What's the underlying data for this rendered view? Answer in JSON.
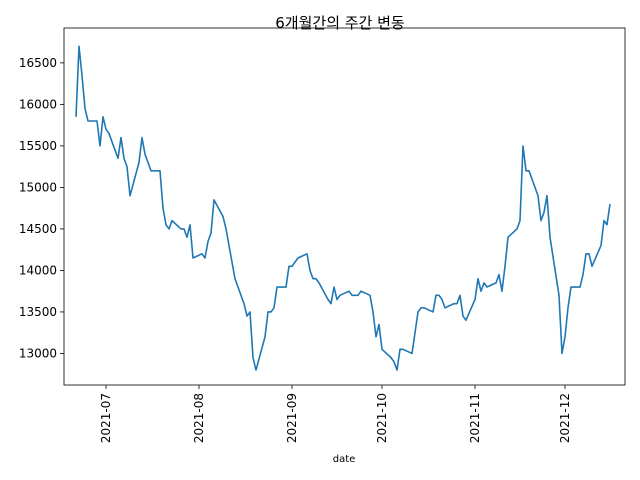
{
  "chart_data": {
    "type": "line",
    "title": "6개월간의 주간 변동",
    "xlabel": "date",
    "ylabel": "",
    "ylim": [
      12620,
      16920
    ],
    "xlim": [
      "2021-06-17",
      "2021-12-21"
    ],
    "grid": false,
    "legend": "none",
    "x_ticks": [
      "2021-07",
      "2021-08",
      "2021-09",
      "2021-10",
      "2021-11",
      "2021-12"
    ],
    "y_ticks": [
      13000,
      13500,
      14000,
      14500,
      15000,
      15500,
      16000,
      16500
    ],
    "line_color": "#1f77b4",
    "series": [
      {
        "x": [
          "2021-06-21",
          "2021-06-22",
          "2021-06-23",
          "2021-06-24",
          "2021-06-25",
          "2021-06-28",
          "2021-06-29",
          "2021-06-30",
          "2021-07-01",
          "2021-07-02",
          "2021-07-05",
          "2021-07-06",
          "2021-07-07",
          "2021-07-08",
          "2021-07-09",
          "2021-07-12",
          "2021-07-13",
          "2021-07-14",
          "2021-07-15",
          "2021-07-16",
          "2021-07-19",
          "2021-07-20",
          "2021-07-21",
          "2021-07-22",
          "2021-07-23",
          "2021-07-26",
          "2021-07-27",
          "2021-07-28",
          "2021-07-29",
          "2021-07-30",
          "2021-08-02",
          "2021-08-03",
          "2021-08-04",
          "2021-08-05",
          "2021-08-06",
          "2021-08-09",
          "2021-08-10",
          "2021-08-11",
          "2021-08-12",
          "2021-08-13",
          "2021-08-16",
          "2021-08-17",
          "2021-08-18",
          "2021-08-19",
          "2021-08-20",
          "2021-08-23",
          "2021-08-24",
          "2021-08-25",
          "2021-08-26",
          "2021-08-27",
          "2021-08-30",
          "2021-08-31",
          "2021-09-01",
          "2021-09-02",
          "2021-09-03",
          "2021-09-06",
          "2021-09-07",
          "2021-09-08",
          "2021-09-09",
          "2021-09-10",
          "2021-09-13",
          "2021-09-14",
          "2021-09-15",
          "2021-09-16",
          "2021-09-17",
          "2021-09-20",
          "2021-09-21",
          "2021-09-22",
          "2021-09-23",
          "2021-09-24",
          "2021-09-27",
          "2021-09-28",
          "2021-09-29",
          "2021-09-30",
          "2021-10-01",
          "2021-10-04",
          "2021-10-05",
          "2021-10-06",
          "2021-10-07",
          "2021-10-08",
          "2021-10-11",
          "2021-10-12",
          "2021-10-13",
          "2021-10-14",
          "2021-10-15",
          "2021-10-18",
          "2021-10-19",
          "2021-10-20",
          "2021-10-21",
          "2021-10-22",
          "2021-10-25",
          "2021-10-26",
          "2021-10-27",
          "2021-10-28",
          "2021-10-29",
          "2021-11-01",
          "2021-11-02",
          "2021-11-03",
          "2021-11-04",
          "2021-11-05",
          "2021-11-08",
          "2021-11-09",
          "2021-11-10",
          "2021-11-11",
          "2021-11-12",
          "2021-11-15",
          "2021-11-16",
          "2021-11-17",
          "2021-11-18",
          "2021-11-19",
          "2021-11-22",
          "2021-11-23",
          "2021-11-24",
          "2021-11-25",
          "2021-11-26",
          "2021-11-29",
          "2021-11-30",
          "2021-12-01",
          "2021-12-02",
          "2021-12-03",
          "2021-12-06",
          "2021-12-07",
          "2021-12-08",
          "2021-12-09",
          "2021-12-10",
          "2021-12-13",
          "2021-12-14",
          "2021-12-15",
          "2021-12-16"
        ],
        "values": [
          15850,
          16700,
          16350,
          15950,
          15800,
          15800,
          15500,
          15850,
          15700,
          15650,
          15350,
          15600,
          15350,
          15250,
          14900,
          15300,
          15600,
          15400,
          15300,
          15200,
          15200,
          14750,
          14550,
          14500,
          14600,
          14500,
          14500,
          14400,
          14550,
          14150,
          14200,
          14150,
          14350,
          14450,
          14850,
          14650,
          14500,
          14300,
          14100,
          13900,
          13600,
          13450,
          13500,
          12950,
          12800,
          13200,
          13500,
          13500,
          13550,
          13800,
          13800,
          14050,
          14050,
          14100,
          14150,
          14200,
          14000,
          13900,
          13900,
          13850,
          13650,
          13600,
          13800,
          13650,
          13700,
          13750,
          13700,
          13700,
          13700,
          13750,
          13700,
          13500,
          13200,
          13350,
          13050,
          12950,
          12900,
          12800,
          13050,
          13050,
          13000,
          13250,
          13500,
          13550,
          13550,
          13500,
          13700,
          13700,
          13650,
          13550,
          13600,
          13600,
          13700,
          13450,
          13400,
          13650,
          13900,
          13750,
          13850,
          13800,
          13850,
          13950,
          13750,
          14050,
          14400,
          14500,
          14600,
          15500,
          15200,
          15200,
          14900,
          14600,
          14700,
          14900,
          14400,
          13700,
          13000,
          13200,
          13550,
          13800,
          13800,
          13950,
          14200,
          14200,
          14050,
          14300,
          14600,
          14550,
          14800
        ]
      }
    ]
  }
}
